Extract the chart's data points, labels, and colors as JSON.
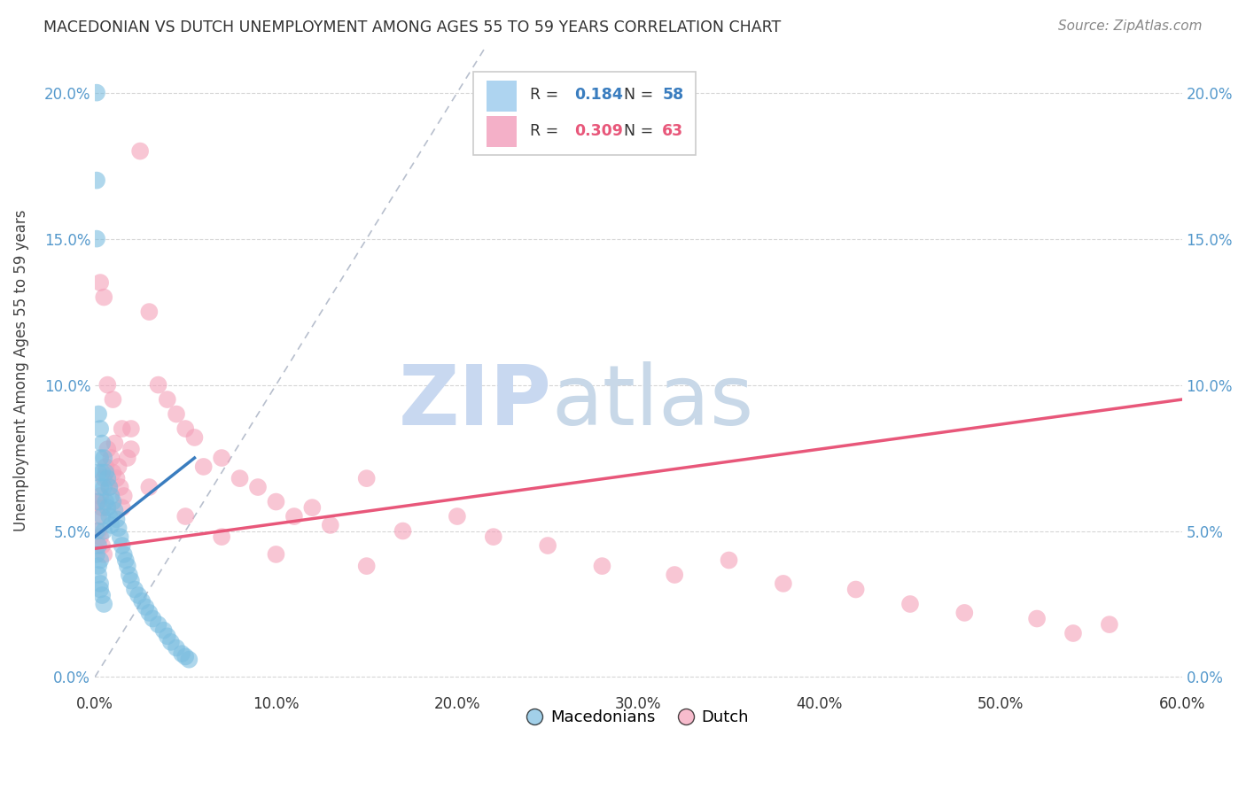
{
  "title": "MACEDONIAN VS DUTCH UNEMPLOYMENT AMONG AGES 55 TO 59 YEARS CORRELATION CHART",
  "source": "Source: ZipAtlas.com",
  "ylabel": "Unemployment Among Ages 55 to 59 years",
  "xlabel_ticks": [
    "0.0%",
    "10.0%",
    "20.0%",
    "30.0%",
    "40.0%",
    "50.0%",
    "60.0%"
  ],
  "ylabel_ticks": [
    "0.0%",
    "5.0%",
    "10.0%",
    "15.0%",
    "20.0%"
  ],
  "xlim": [
    0.0,
    0.6
  ],
  "ylim": [
    -0.005,
    0.215
  ],
  "mac_R": 0.184,
  "mac_N": 58,
  "dutch_R": 0.309,
  "dutch_N": 63,
  "mac_color": "#7bbde0",
  "dutch_color": "#f4a0b8",
  "mac_trend_color": "#3a7dbf",
  "dutch_trend_color": "#e8577a",
  "ref_line_color": "#b0b8c8",
  "background_color": "#ffffff",
  "watermark": "ZIPatlas",
  "watermark_zip_color": "#c8d8f0",
  "watermark_atlas_color": "#c8d8e8",
  "grid_color": "#cccccc",
  "legend_box_color_mac": "#aed4f0",
  "legend_box_color_dutch": "#f4b0c8",
  "mac_x": [
    0.001,
    0.001,
    0.001,
    0.002,
    0.002,
    0.002,
    0.002,
    0.003,
    0.003,
    0.003,
    0.003,
    0.004,
    0.004,
    0.004,
    0.005,
    0.005,
    0.005,
    0.006,
    0.006,
    0.007,
    0.007,
    0.008,
    0.008,
    0.009,
    0.009,
    0.01,
    0.011,
    0.012,
    0.013,
    0.014,
    0.015,
    0.016,
    0.017,
    0.018,
    0.019,
    0.02,
    0.022,
    0.024,
    0.026,
    0.028,
    0.03,
    0.032,
    0.035,
    0.038,
    0.04,
    0.042,
    0.045,
    0.048,
    0.05,
    0.052,
    0.001,
    0.002,
    0.003,
    0.001,
    0.002,
    0.003,
    0.004,
    0.005
  ],
  "mac_y": [
    0.2,
    0.17,
    0.05,
    0.09,
    0.07,
    0.06,
    0.045,
    0.085,
    0.075,
    0.065,
    0.04,
    0.08,
    0.07,
    0.055,
    0.075,
    0.065,
    0.05,
    0.07,
    0.06,
    0.068,
    0.058,
    0.065,
    0.055,
    0.062,
    0.052,
    0.06,
    0.057,
    0.054,
    0.051,
    0.048,
    0.045,
    0.042,
    0.04,
    0.038,
    0.035,
    0.033,
    0.03,
    0.028,
    0.026,
    0.024,
    0.022,
    0.02,
    0.018,
    0.016,
    0.014,
    0.012,
    0.01,
    0.008,
    0.007,
    0.006,
    0.15,
    0.035,
    0.03,
    0.042,
    0.038,
    0.032,
    0.028,
    0.025
  ],
  "dutch_x": [
    0.001,
    0.002,
    0.002,
    0.003,
    0.003,
    0.004,
    0.004,
    0.005,
    0.005,
    0.006,
    0.007,
    0.008,
    0.009,
    0.01,
    0.011,
    0.012,
    0.013,
    0.014,
    0.015,
    0.016,
    0.018,
    0.02,
    0.025,
    0.03,
    0.035,
    0.04,
    0.045,
    0.05,
    0.055,
    0.06,
    0.07,
    0.08,
    0.09,
    0.1,
    0.11,
    0.12,
    0.13,
    0.15,
    0.17,
    0.2,
    0.22,
    0.25,
    0.28,
    0.32,
    0.35,
    0.38,
    0.42,
    0.45,
    0.48,
    0.52,
    0.54,
    0.56,
    0.003,
    0.005,
    0.007,
    0.01,
    0.015,
    0.02,
    0.03,
    0.05,
    0.07,
    0.1,
    0.15
  ],
  "dutch_y": [
    0.06,
    0.055,
    0.05,
    0.062,
    0.048,
    0.058,
    0.045,
    0.068,
    0.042,
    0.072,
    0.078,
    0.065,
    0.075,
    0.07,
    0.08,
    0.068,
    0.072,
    0.065,
    0.058,
    0.062,
    0.075,
    0.085,
    0.18,
    0.125,
    0.1,
    0.095,
    0.09,
    0.085,
    0.082,
    0.072,
    0.075,
    0.068,
    0.065,
    0.06,
    0.055,
    0.058,
    0.052,
    0.068,
    0.05,
    0.055,
    0.048,
    0.045,
    0.038,
    0.035,
    0.04,
    0.032,
    0.03,
    0.025,
    0.022,
    0.02,
    0.015,
    0.018,
    0.135,
    0.13,
    0.1,
    0.095,
    0.085,
    0.078,
    0.065,
    0.055,
    0.048,
    0.042,
    0.038
  ],
  "mac_trend_x": [
    0.0,
    0.055
  ],
  "mac_trend_y": [
    0.048,
    0.075
  ],
  "dutch_trend_x": [
    0.0,
    0.6
  ],
  "dutch_trend_y": [
    0.044,
    0.095
  ],
  "ref_line_x": [
    0.0,
    0.215
  ],
  "ref_line_y": [
    0.0,
    0.215
  ]
}
